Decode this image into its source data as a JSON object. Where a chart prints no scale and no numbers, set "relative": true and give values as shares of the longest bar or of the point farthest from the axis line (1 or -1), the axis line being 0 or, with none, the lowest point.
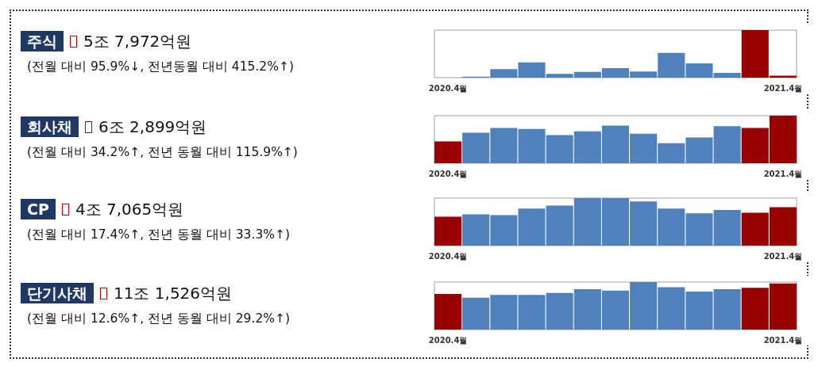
{
  "chart_data": [
    {
      "type": "other",
      "title": "주식",
      "subtitle": "5조 7,972억원",
      "annotations": [
        "(전월 대비 95.9%↓, 전년동월 대비 415.2%↑)"
      ]
    },
    {
      "type": "bar",
      "relative": true,
      "categories": [
        "2020.4월",
        null,
        null,
        null,
        null,
        null,
        null,
        null,
        null,
        null,
        null,
        null,
        "2021.4월"
      ],
      "values": [
        0,
        0.02,
        0.18,
        0.32,
        0.08,
        0.12,
        0.2,
        0.13,
        0.52,
        0.3,
        0.1,
        1,
        0.04
      ],
      "colors": [
        "#990000",
        "#4f81bd",
        "#4f81bd",
        "#4f81bd",
        "#4f81bd",
        "#4f81bd",
        "#4f81bd",
        "#4f81bd",
        "#4f81bd",
        "#4f81bd",
        "#4f81bd",
        "#990000",
        "#990000"
      ],
      "grid": false
    },
    {
      "type": "other",
      "title": "회사채",
      "subtitle": "6조 2,899억원",
      "annotations": [
        "(전월 대비 34.2%↑, 전년 동월 대비 115.9%↑)"
      ]
    },
    {
      "type": "bar",
      "relative": true,
      "categories": [
        "2020.4월",
        null,
        null,
        null,
        null,
        null,
        null,
        null,
        null,
        null,
        null,
        null,
        "2021.4월"
      ],
      "values": [
        0.46,
        0.64,
        0.74,
        0.72,
        0.59,
        0.67,
        0.79,
        0.62,
        0.42,
        0.54,
        0.78,
        0.74,
        1
      ],
      "colors": [
        "#990000",
        "#4f81bd",
        "#4f81bd",
        "#4f81bd",
        "#4f81bd",
        "#4f81bd",
        "#4f81bd",
        "#4f81bd",
        "#4f81bd",
        "#4f81bd",
        "#4f81bd",
        "#990000",
        "#990000"
      ],
      "grid": false
    },
    {
      "type": "other",
      "title": "CP",
      "subtitle": "4조 7,065억원",
      "annotations": [
        "(전월 대비 17.4%↑, 전년 동월 대비 33.3%↑)"
      ]
    },
    {
      "type": "bar",
      "relative": true,
      "categories": [
        "2020.4월",
        null,
        null,
        null,
        null,
        null,
        null,
        null,
        null,
        null,
        null,
        null,
        "2021.4월"
      ],
      "values": [
        0.61,
        0.66,
        0.64,
        0.78,
        0.84,
        1,
        1,
        0.93,
        0.78,
        0.68,
        0.75,
        0.69,
        0.81
      ],
      "colors": [
        "#990000",
        "#4f81bd",
        "#4f81bd",
        "#4f81bd",
        "#4f81bd",
        "#4f81bd",
        "#4f81bd",
        "#4f81bd",
        "#4f81bd",
        "#4f81bd",
        "#4f81bd",
        "#990000",
        "#990000"
      ],
      "grid": false
    },
    {
      "type": "other",
      "title": "단기사채",
      "subtitle": "11조 1,526억원",
      "annotations": [
        "(전월 대비 12.6%↑, 전년 동월 대비 29.2%↑)"
      ]
    },
    {
      "type": "bar",
      "relative": true,
      "categories": [
        "2020.4월",
        null,
        null,
        null,
        null,
        null,
        null,
        null,
        null,
        null,
        null,
        null,
        "2021.4월"
      ],
      "values": [
        0.75,
        0.67,
        0.73,
        0.73,
        0.77,
        0.85,
        0.82,
        1,
        0.89,
        0.8,
        0.85,
        0.88,
        0.97
      ],
      "colors": [
        "#990000",
        "#4f81bd",
        "#4f81bd",
        "#4f81bd",
        "#4f81bd",
        "#4f81bd",
        "#4f81bd",
        "#4f81bd",
        "#4f81bd",
        "#4f81bd",
        "#4f81bd",
        "#990000",
        "#990000"
      ],
      "grid": false
    }
  ]
}
